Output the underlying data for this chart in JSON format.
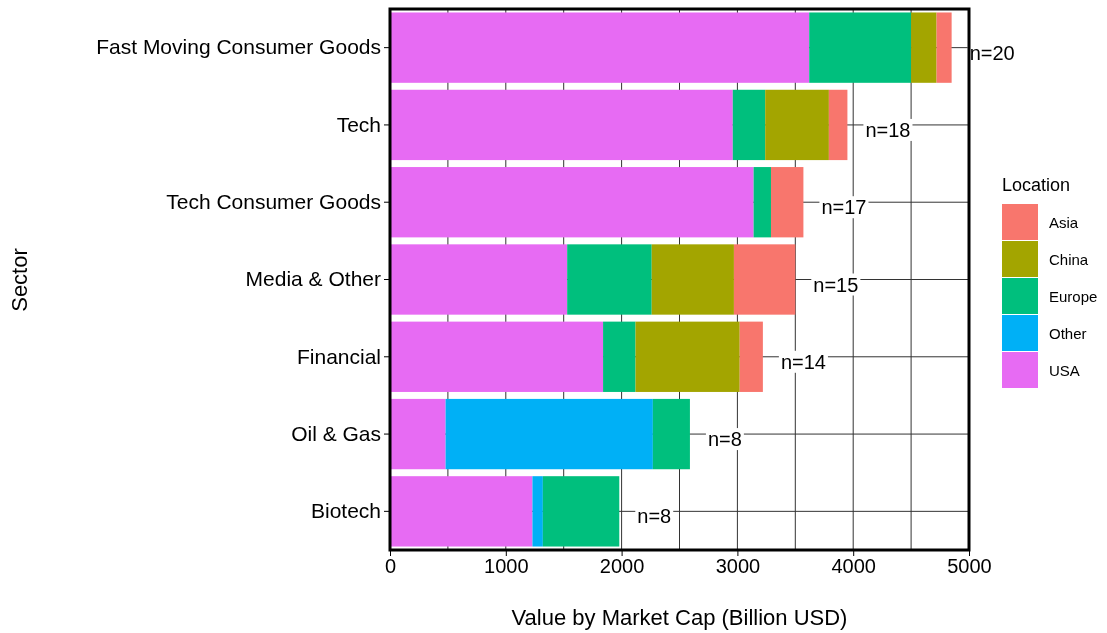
{
  "chart_data": {
    "type": "bar",
    "orientation": "horizontal",
    "stacked": true,
    "xlabel": "Value by Market Cap (Billion USD)",
    "ylabel": "Sector",
    "legend_title": "Location",
    "legend": "right",
    "grid": true,
    "categories": [
      "Fast Moving Consumer Goods",
      "Tech",
      "Tech Consumer Goods",
      "Media & Other",
      "Financial",
      "Oil & Gas",
      "Biotech"
    ],
    "xlim": [
      0,
      5000
    ],
    "xticks": [
      0,
      1000,
      2000,
      3000,
      4000,
      5000
    ],
    "series": [
      {
        "name": "USA",
        "color": "#e76bf3",
        "values": [
          3620,
          2960,
          3140,
          1530,
          1840,
          480,
          1230
        ]
      },
      {
        "name": "Other",
        "color": "#00b0f6",
        "values": [
          null,
          null,
          null,
          null,
          null,
          1790,
          90
        ]
      },
      {
        "name": "Europe",
        "color": "#00bf7d",
        "values": [
          880,
          280,
          150,
          730,
          280,
          320,
          660
        ]
      },
      {
        "name": "China",
        "color": "#a3a500",
        "values": [
          220,
          550,
          null,
          710,
          900,
          null,
          null
        ]
      },
      {
        "name": "Asia",
        "color": "#f8766d",
        "values": [
          130,
          160,
          280,
          530,
          200,
          null,
          null
        ]
      }
    ],
    "annotations": [
      "n=20",
      "n=18",
      "n=17",
      "n=15",
      "n=14",
      "n=8",
      "n=8"
    ]
  }
}
